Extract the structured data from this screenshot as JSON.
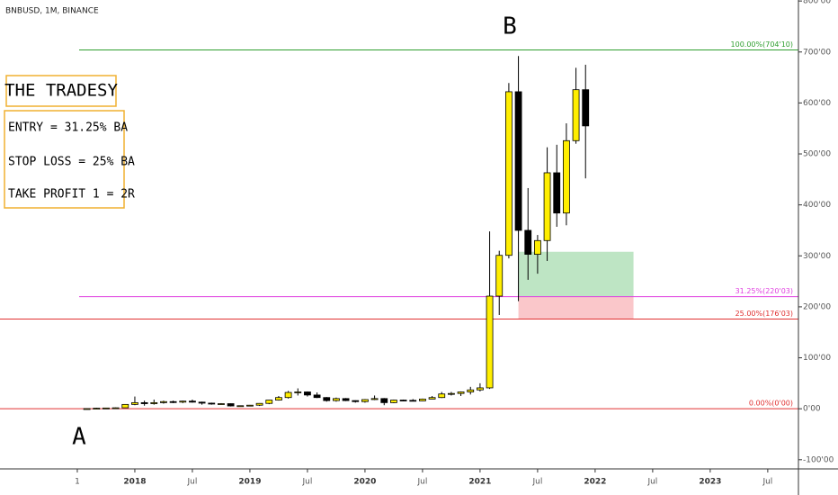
{
  "chart_data": {
    "type": "candlestick",
    "title": "BNBUSD, 1M, BINANCE",
    "x": [
      -5,
      -4,
      -3,
      -2,
      -1,
      0,
      1,
      2,
      3,
      4,
      5,
      6,
      7,
      8,
      9,
      10,
      11,
      12,
      13,
      14,
      15,
      16,
      17,
      18,
      19,
      20,
      21,
      22,
      23,
      24,
      25,
      26,
      27,
      28,
      29,
      30,
      31,
      32,
      33,
      34,
      35,
      36,
      37,
      38,
      39,
      40,
      41,
      42,
      43,
      44,
      45,
      46,
      47
    ],
    "open": [
      0.1,
      0.3,
      1.1,
      1.5,
      1.9,
      8.5,
      12,
      10,
      12,
      14,
      13,
      15,
      13,
      11,
      10,
      10,
      5.5,
      6,
      7,
      10.5,
      17,
      22,
      32,
      33,
      27,
      22,
      16,
      20,
      16,
      14,
      18,
      20,
      12,
      17,
      16.5,
      15.5,
      19,
      22,
      29,
      30,
      33,
      37,
      41,
      221,
      301,
      622,
      350,
      303,
      330,
      463,
      384,
      526,
      626
    ],
    "high": [
      0.4,
      2,
      1.8,
      2.5,
      9,
      24,
      16,
      18,
      16,
      16,
      16,
      18,
      14,
      12,
      11,
      10.5,
      6.5,
      7.5,
      11,
      17.5,
      25,
      35,
      40,
      34,
      32,
      23,
      22,
      21,
      16.5,
      19,
      26,
      21,
      18,
      18,
      19,
      20,
      25,
      33,
      33,
      34,
      43,
      50,
      348,
      310,
      639,
      692,
      433,
      341,
      513,
      518,
      560,
      669,
      675
    ],
    "low": [
      0.1,
      0.3,
      0.8,
      1.2,
      1.9,
      7,
      6,
      8,
      10,
      11,
      11,
      12,
      8,
      8,
      8.5,
      4.5,
      4,
      5,
      5.5,
      9,
      16,
      20,
      26,
      24,
      21,
      14,
      14,
      15,
      12,
      12,
      17,
      7,
      11,
      15,
      15,
      15,
      19,
      21,
      26,
      25,
      28,
      34,
      39,
      184,
      295,
      211,
      253,
      265,
      290,
      357,
      360,
      520,
      452
    ],
    "close": [
      0.3,
      1.1,
      1.5,
      1.9,
      8.5,
      12,
      10,
      12,
      14,
      13,
      15,
      13,
      11,
      10,
      10,
      5.5,
      6,
      7,
      10.5,
      17,
      22,
      32,
      33,
      27,
      22,
      16,
      20,
      16,
      14,
      18,
      20,
      12,
      17,
      16.5,
      15.5,
      19,
      22,
      29,
      30,
      33,
      37,
      41,
      221,
      301,
      622,
      350,
      303,
      330,
      463,
      384,
      526,
      626,
      555
    ],
    "up_color": "#ffee00",
    "down_color": "#000000",
    "xlim": [
      -14.06,
      69.2
    ],
    "xticks": [
      {
        "value": -6,
        "label": "1"
      },
      {
        "value": 0,
        "label": "2018"
      },
      {
        "value": 6,
        "label": "Jul"
      },
      {
        "value": 12,
        "label": "2019"
      },
      {
        "value": 18,
        "label": "Jul"
      },
      {
        "value": 24,
        "label": "2020"
      },
      {
        "value": 30,
        "label": "Jul"
      },
      {
        "value": 36,
        "label": "2021"
      },
      {
        "value": 42,
        "label": "Jul"
      },
      {
        "value": 48,
        "label": "2022"
      },
      {
        "value": 54,
        "label": "Jul"
      },
      {
        "value": 60,
        "label": "2023"
      },
      {
        "value": 66,
        "label": "Jul"
      }
    ],
    "ylim": [
      -118,
      802
    ],
    "yticks": [
      {
        "value": 800,
        "label": "800'00"
      },
      {
        "value": 700,
        "label": "700'00"
      },
      {
        "value": 600,
        "label": "600'00"
      },
      {
        "value": 500,
        "label": "500'00"
      },
      {
        "value": 400,
        "label": "400'00"
      },
      {
        "value": 300,
        "label": "300'00"
      },
      {
        "value": 200,
        "label": "200'00"
      },
      {
        "value": 100,
        "label": "100'00"
      },
      {
        "value": 0,
        "label": "0'00"
      },
      {
        "value": -100,
        "label": "-100'00"
      }
    ],
    "levels": [
      {
        "label": "100.00%(704'10)",
        "value": 704.1,
        "color": "#2e9e2e"
      },
      {
        "label": "31.25%(220'03)",
        "value": 220.03,
        "color": "#e040e0"
      },
      {
        "label": "25.00%(176'03)",
        "value": 176.03,
        "color": "#e03030"
      },
      {
        "label": "0.00%(0'00)",
        "value": 0,
        "color": "#e03030"
      }
    ],
    "zones": [
      {
        "from": 220.03,
        "to": 308.03,
        "x_from": 40,
        "x_to": 52,
        "color": "#a8dcb0"
      },
      {
        "from": 176.03,
        "to": 220.03,
        "x_from": 40,
        "x_to": 52,
        "color": "#f8b4b8"
      }
    ],
    "annotations": [
      "A",
      "B"
    ],
    "info_box": {
      "title": "THE TRADESY",
      "lines": [
        "ENTRY = 31.25% BA",
        "STOP LOSS = 25% BA",
        "TAKE PROFIT 1 = 2R"
      ]
    }
  }
}
